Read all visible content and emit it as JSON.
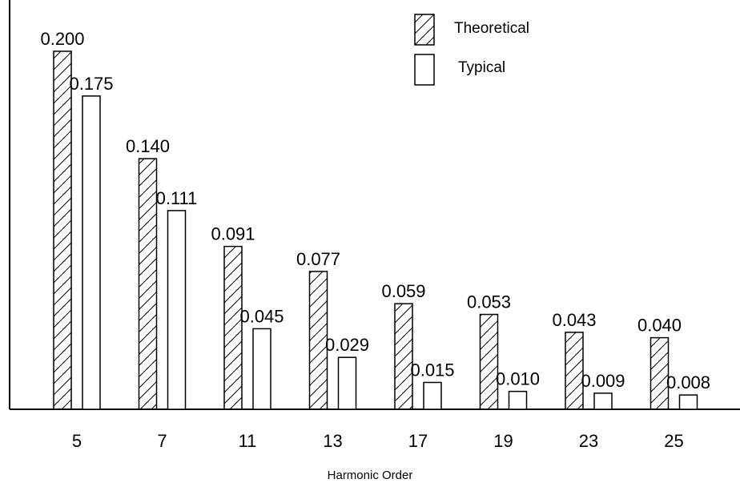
{
  "chart_data": {
    "type": "bar",
    "title": "",
    "xlabel": "Harmonic Order",
    "ylabel": "",
    "ylim": [
      0,
      0.2
    ],
    "grid": false,
    "legend_position": "top-right",
    "categories": [
      "5",
      "7",
      "11",
      "13",
      "17",
      "19",
      "23",
      "25"
    ],
    "series": [
      {
        "name": "Theoretical",
        "fill": "hatched",
        "values": [
          0.2,
          0.14,
          0.091,
          0.077,
          0.059,
          0.053,
          0.043,
          0.04
        ],
        "labels": [
          "0.200",
          "0.140",
          "0.091",
          "0.077",
          "0.059",
          "0.053",
          "0.043",
          "0.040"
        ]
      },
      {
        "name": "Typical",
        "fill": "open",
        "values": [
          0.175,
          0.111,
          0.045,
          0.029,
          0.015,
          0.01,
          0.009,
          0.008
        ],
        "labels": [
          "0.175",
          "0.111",
          "0.045",
          "0.029",
          "0.015",
          "0.010",
          "0.009",
          "0.008"
        ]
      }
    ],
    "colors": {
      "stroke": "#000000",
      "background": "#ffffff"
    }
  }
}
